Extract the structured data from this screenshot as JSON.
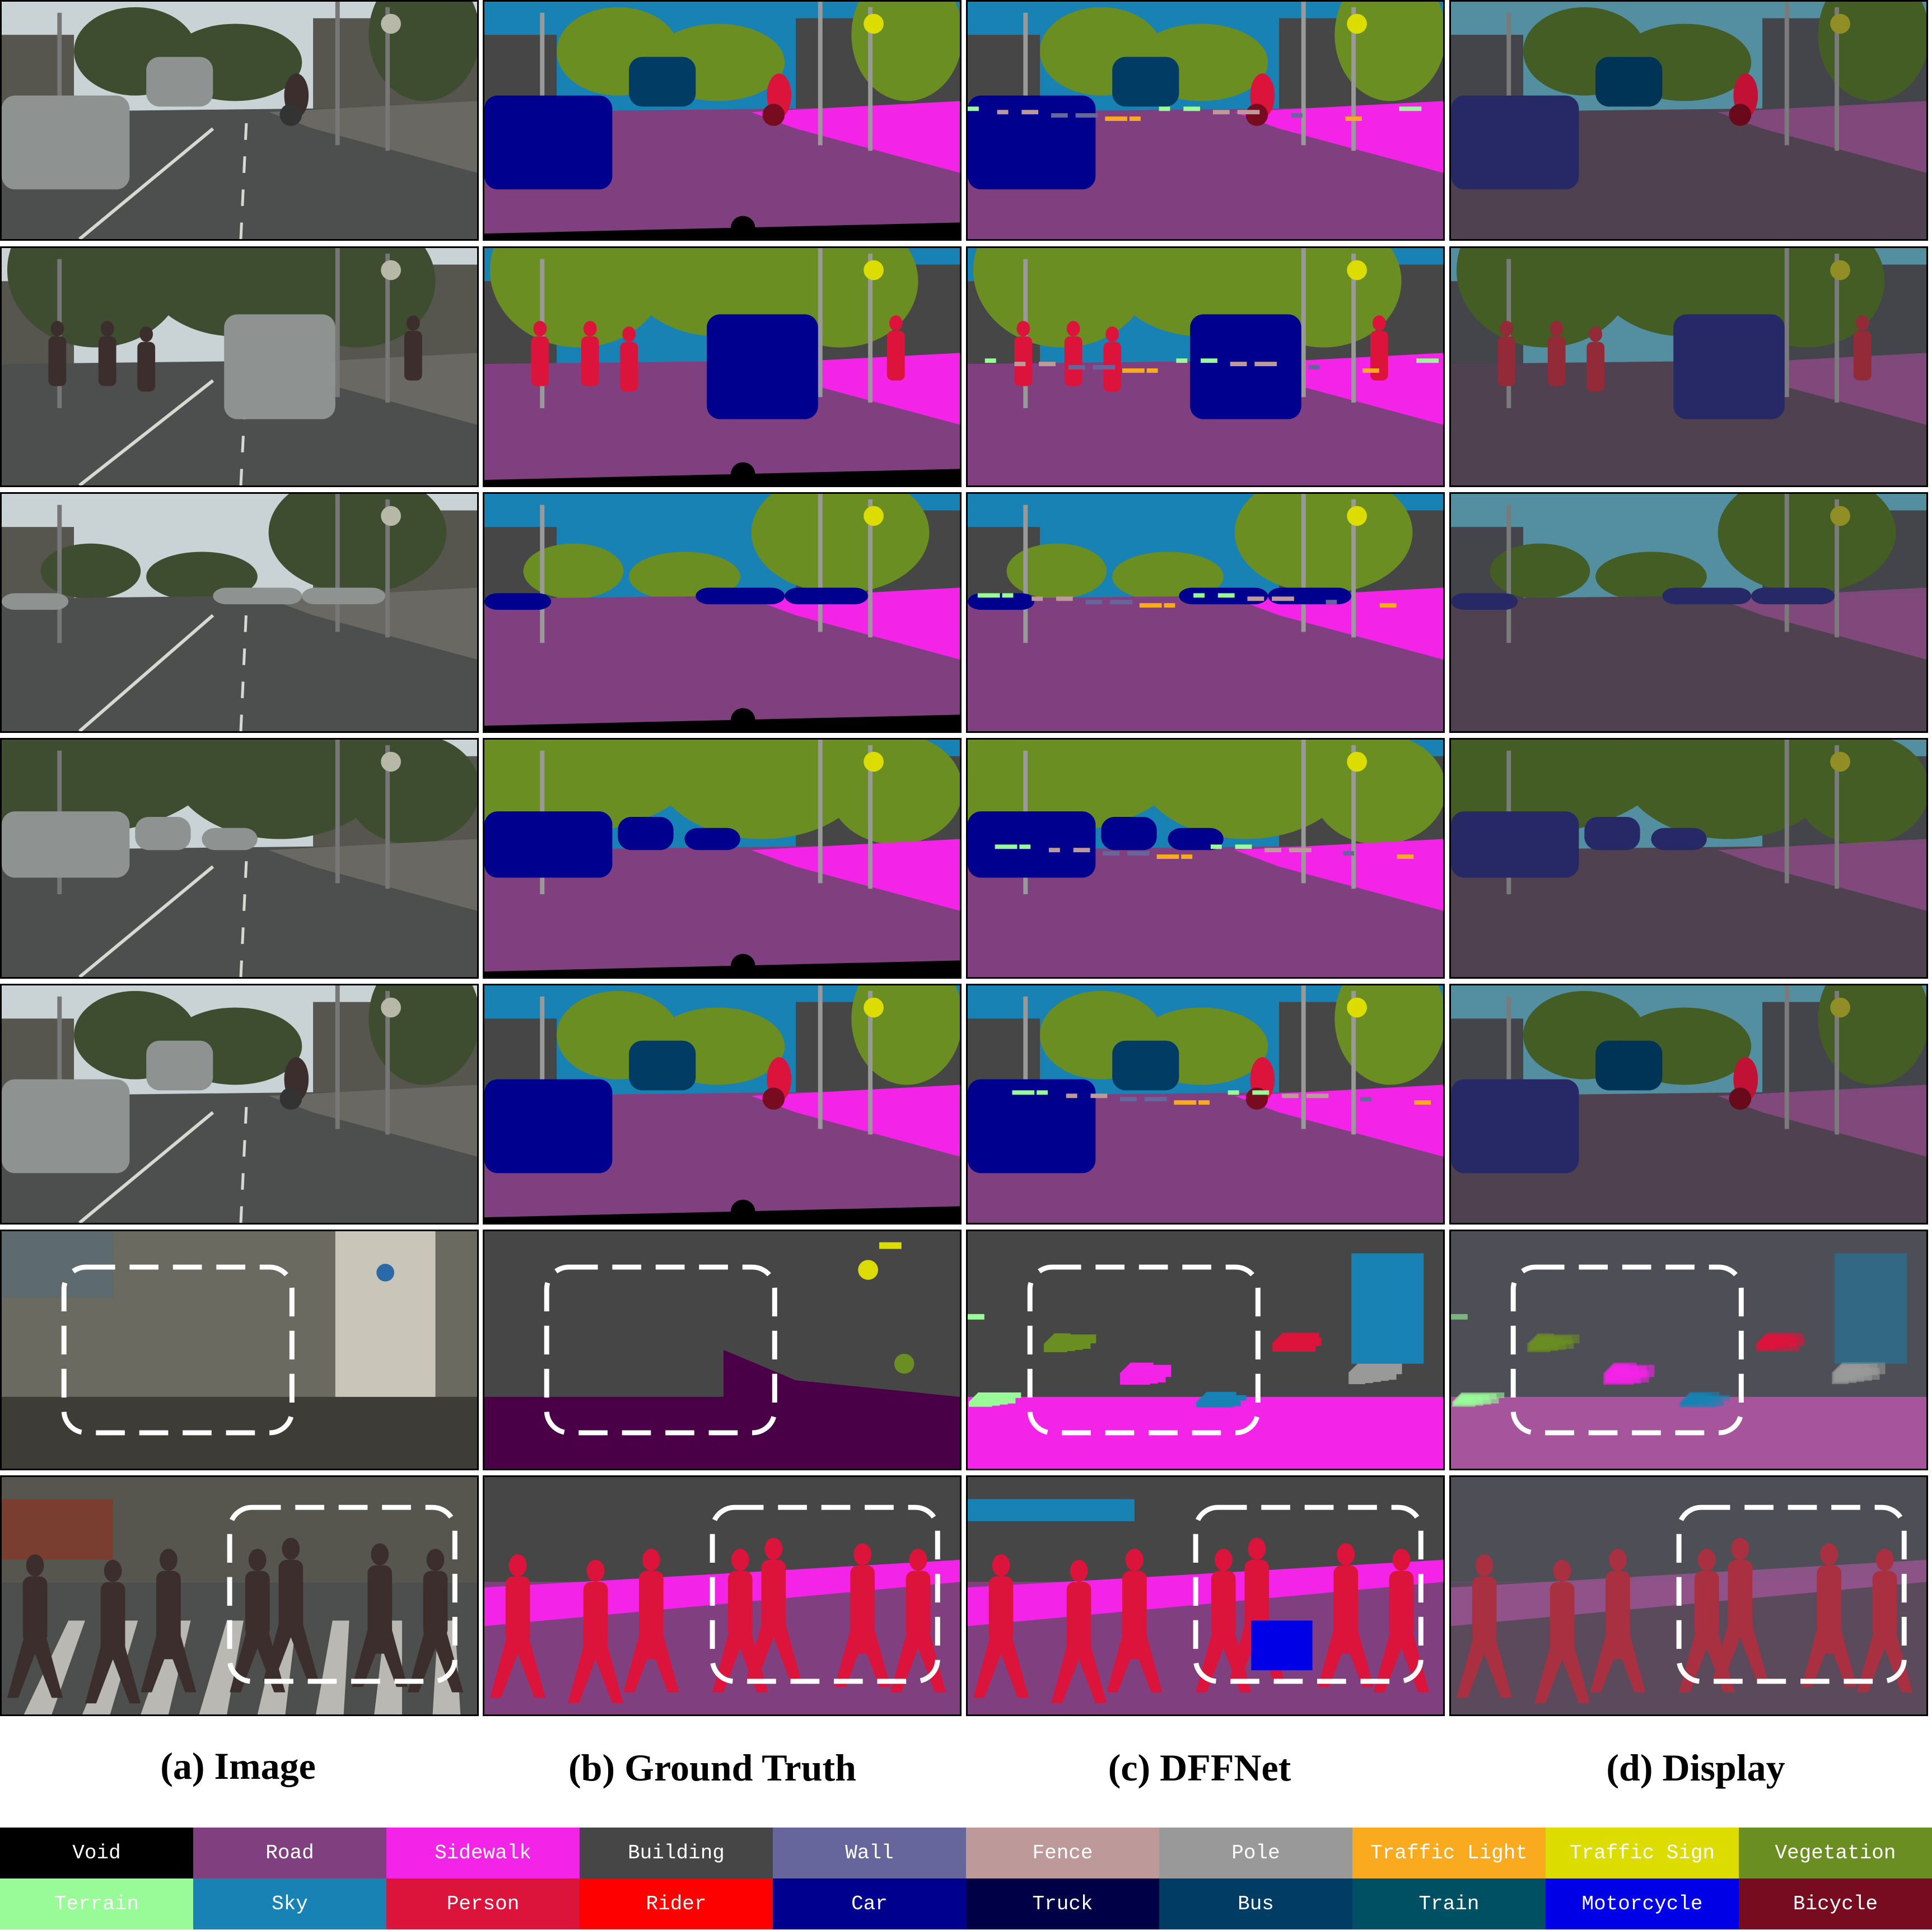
{
  "columns": [
    {
      "label": "(a) Image"
    },
    {
      "label": "(b) Ground Truth"
    },
    {
      "label": "(c) DFFNet"
    },
    {
      "label": "(d) Display"
    }
  ],
  "rows": 7,
  "highlight_rows": [
    5,
    6
  ],
  "legend": [
    {
      "label": "Void",
      "color": "#000000",
      "text_color": "#ffffff"
    },
    {
      "label": "Road",
      "color": "#804080",
      "text_color": "#ffffff"
    },
    {
      "label": "Sidewalk",
      "color": "#f423e8",
      "text_color": "#ffffff"
    },
    {
      "label": "Building",
      "color": "#464646",
      "text_color": "#ffffff"
    },
    {
      "label": "Wall",
      "color": "#66669c",
      "text_color": "#ffffff"
    },
    {
      "label": "Fence",
      "color": "#be9999",
      "text_color": "#ffffff"
    },
    {
      "label": "Pole",
      "color": "#999999",
      "text_color": "#ffffff"
    },
    {
      "label": "Traffic Light",
      "color": "#faaa1e",
      "text_color": "#ffffff"
    },
    {
      "label": "Traffic Sign",
      "color": "#dcdc00",
      "text_color": "#ffffff"
    },
    {
      "label": "Vegetation",
      "color": "#6b8e23",
      "text_color": "#ffffff"
    },
    {
      "label": "Terrain",
      "color": "#98fb98",
      "text_color": "#ffffff"
    },
    {
      "label": "Sky",
      "color": "#1882b4",
      "text_color": "#ffffff"
    },
    {
      "label": "Person",
      "color": "#dc143c",
      "text_color": "#ffffff"
    },
    {
      "label": "Rider",
      "color": "#ff0000",
      "text_color": "#ffffff"
    },
    {
      "label": "Car",
      "color": "#00008e",
      "text_color": "#ffffff"
    },
    {
      "label": "Truck",
      "color": "#000046",
      "text_color": "#ffffff"
    },
    {
      "label": "Bus",
      "color": "#003c64",
      "text_color": "#ffffff"
    },
    {
      "label": "Train",
      "color": "#005064",
      "text_color": "#ffffff"
    },
    {
      "label": "Motorcycle",
      "color": "#0000e6",
      "text_color": "#ffffff"
    },
    {
      "label": "Bicycle",
      "color": "#770b20",
      "text_color": "#ffffff"
    }
  ]
}
